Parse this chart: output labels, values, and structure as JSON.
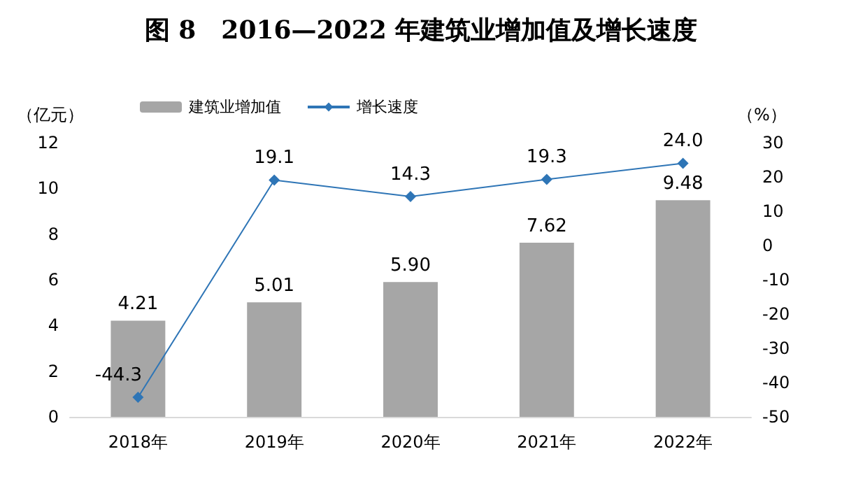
{
  "chart_data": {
    "type": "bar",
    "title": "图 8　2016—2022 年建筑业增加值及增长速度",
    "ylabel": "（亿元）",
    "y2label": "（%）",
    "categories": [
      "2018年",
      "2019年",
      "2020年",
      "2021年",
      "2022年"
    ],
    "series": [
      {
        "name": "建筑业增加值",
        "color": "#a6a6a6",
        "values": [
          4.21,
          5.01,
          5.9,
          7.62,
          9.48
        ],
        "value_labels": [
          "4.21",
          "5.01",
          "5.90",
          "7.62",
          "9.48"
        ]
      },
      {
        "name": "增长速度",
        "type": "line",
        "axis": "y2",
        "color": "#2e75b6",
        "marker": "diamond",
        "values": [
          -44.3,
          19.1,
          14.3,
          19.3,
          24.0
        ],
        "value_labels": [
          "-44.3",
          "19.1",
          "14.3",
          "19.3",
          "24.0"
        ]
      }
    ],
    "ylim": [
      0,
      12
    ],
    "yticks": [
      0,
      2,
      4,
      6,
      8,
      10,
      12
    ],
    "y2lim": [
      -50,
      30
    ],
    "y2ticks": [
      -50,
      -40,
      -30,
      -20,
      -10,
      0,
      10,
      20,
      30
    ],
    "legend": "top left",
    "grid": false
  }
}
